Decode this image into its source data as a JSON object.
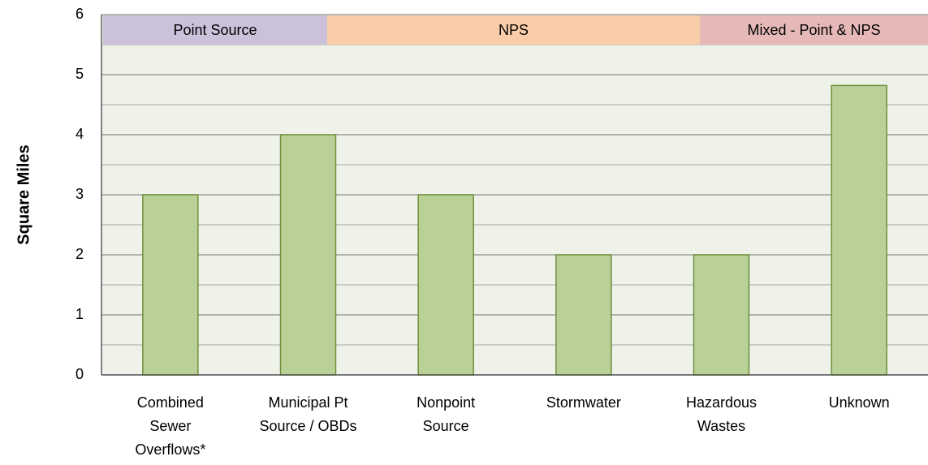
{
  "chart_data": {
    "type": "bar",
    "y_label": "Square Miles",
    "categories": [
      "Combined\nSewer\nOverflows*",
      "Municipal Pt\nSource / OBDs",
      "Nonpoint\nSource",
      "Stormwater",
      "Hazardous\nWastes",
      "Unknown"
    ],
    "values": [
      3,
      4,
      3,
      2,
      2,
      4.82
    ],
    "color": "#b9d096",
    "edge_color": "#6f8f3c",
    "ylim": [
      0,
      6
    ],
    "yticks": [
      0,
      1,
      2,
      3,
      4,
      5,
      6
    ],
    "minor_yticks": [
      0.5,
      1.5,
      2.5,
      3.5,
      4.5,
      5.5
    ],
    "grid": true,
    "groups": [
      {
        "label": "Point Source",
        "color": "#ccc1da"
      },
      {
        "label": "NPS",
        "color": "#f9cda8"
      },
      {
        "label": "Mixed - Point & NPS",
        "color": "#e6b9b8"
      }
    ]
  }
}
